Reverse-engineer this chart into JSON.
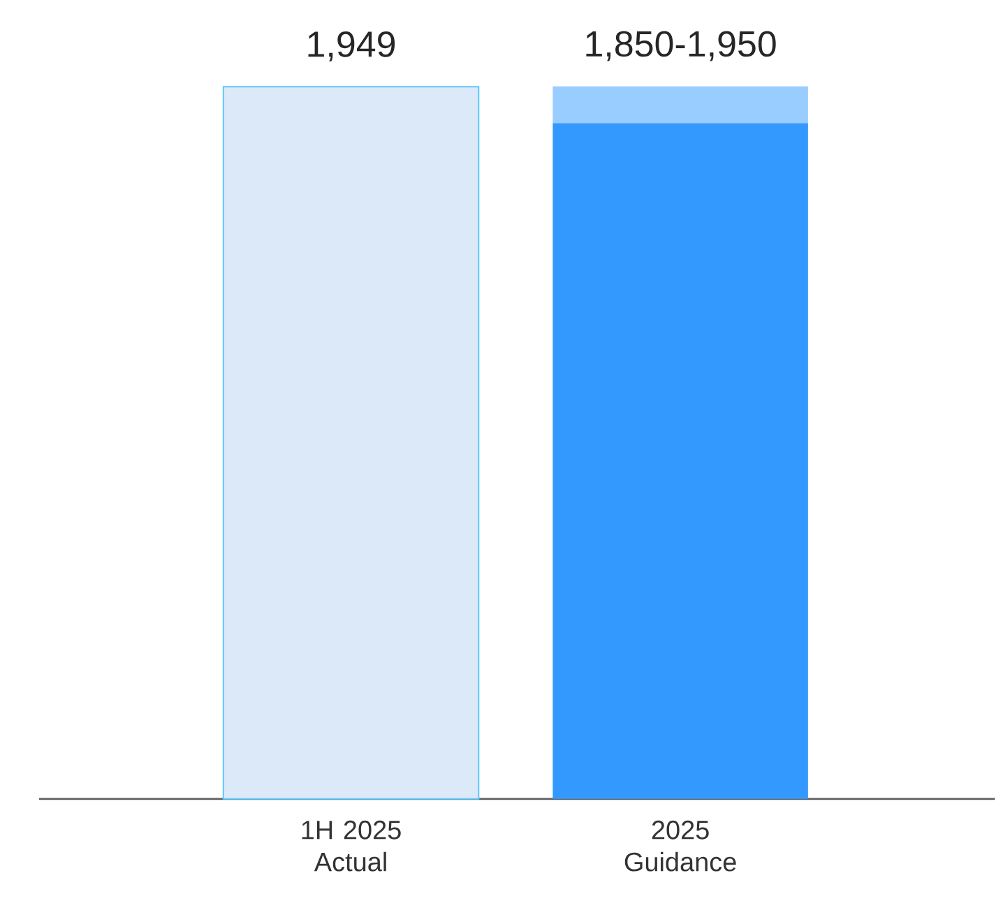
{
  "chart_data": {
    "type": "bar",
    "stacked": true,
    "categories": [
      "1H 2025 Actual",
      "2025 Guidance"
    ],
    "series": [
      {
        "colors": [
          "#dce9f8",
          "#3399ff"
        ],
        "values": [
          1949,
          1850
        ],
        "value_labels": [
          "1,949",
          "1,850-1,950"
        ]
      },
      {
        "colors": [
          null,
          "#99ccff"
        ],
        "values": [
          null,
          100
        ]
      }
    ],
    "tick_labels": "x"
  }
}
